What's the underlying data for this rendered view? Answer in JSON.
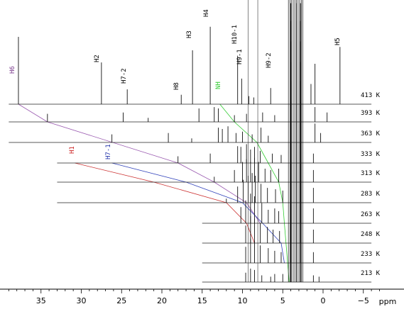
{
  "chart_data": {
    "type": "line",
    "xlabel": "ppm",
    "xlim": [
      39,
      -7
    ],
    "x_ticks": [
      35,
      30,
      25,
      20,
      15,
      10,
      5,
      0,
      -5
    ],
    "temperatures": [
      {
        "label": "413 K",
        "range": [
          39,
          -6
        ]
      },
      {
        "label": "393 K",
        "range": [
          39,
          -6
        ]
      },
      {
        "label": "363 K",
        "range": [
          39,
          -6
        ]
      },
      {
        "label": "333 K",
        "range": [
          33,
          -6
        ]
      },
      {
        "label": "313 K",
        "range": [
          33,
          -6
        ]
      },
      {
        "label": "283 K",
        "range": [
          33,
          -6
        ]
      },
      {
        "label": "263 K",
        "range": [
          15,
          -6
        ]
      },
      {
        "label": "248 K",
        "range": [
          15,
          -6
        ]
      },
      {
        "label": "233 K",
        "range": [
          15,
          -6
        ]
      },
      {
        "label": "213 K",
        "range": [
          15,
          -6
        ]
      }
    ],
    "peak_labels": [
      {
        "text": "H6",
        "ppm": 37.8,
        "color": "#7a3a8c"
      },
      {
        "text": "H2",
        "ppm": 27.5,
        "color": "#000000"
      },
      {
        "text": "H7-2",
        "ppm": 24.3,
        "color": "#000000"
      },
      {
        "text": "H8",
        "ppm": 17.6,
        "color": "#000000"
      },
      {
        "text": "H3",
        "ppm": 16.2,
        "color": "#000000"
      },
      {
        "text": "H4",
        "ppm": 14.0,
        "color": "#000000"
      },
      {
        "text": "NH",
        "ppm": 12.8,
        "color": "#33cc33"
      },
      {
        "text": "H10-1",
        "ppm": 10.6,
        "color": "#000000"
      },
      {
        "text": "H9-1",
        "ppm": 10.1,
        "color": "#000000"
      },
      {
        "text": "H9-2",
        "ppm": 6.5,
        "color": "#000000"
      },
      {
        "text": "H5",
        "ppm": -2.1,
        "color": "#000000"
      },
      {
        "text": "H1",
        "ppm": 30.8,
        "color": "#cc2222"
      },
      {
        "text": "H7-1",
        "ppm": 26.2,
        "color": "#2233aa"
      }
    ],
    "traces": [
      {
        "color": "#9a5ab0",
        "points": [
          [
            37.8,
            "413 K"
          ],
          [
            34.2,
            "393 K"
          ],
          [
            18.0,
            "333 K"
          ],
          [
            13.5,
            "313 K"
          ],
          [
            9.5,
            "283 K"
          ],
          [
            7.8,
            "263 K"
          ]
        ]
      },
      {
        "color": "#cc3333",
        "points": [
          [
            30.8,
            "333 K"
          ],
          [
            21.0,
            "313 K"
          ],
          [
            12.0,
            "283 K"
          ],
          [
            9.5,
            "263 K"
          ],
          [
            8.5,
            "248 K"
          ]
        ]
      },
      {
        "color": "#3344bb",
        "points": [
          [
            26.2,
            "333 K"
          ],
          [
            17.0,
            "313 K"
          ],
          [
            10.0,
            "283 K"
          ],
          [
            7.5,
            "263 K"
          ],
          [
            5.2,
            "248 K"
          ],
          [
            4.8,
            "233 K"
          ]
        ]
      },
      {
        "color": "#33cc33",
        "points": [
          [
            12.8,
            "413 K"
          ],
          [
            11.0,
            "393 K"
          ],
          [
            8.2,
            "363 K"
          ],
          [
            6.8,
            "333 K"
          ],
          [
            5.5,
            "313 K"
          ],
          [
            5.0,
            "283 K"
          ],
          [
            4.8,
            "263 K"
          ],
          [
            4.6,
            "248 K"
          ],
          [
            4.4,
            "233 K"
          ],
          [
            4.2,
            "213 K"
          ]
        ]
      }
    ],
    "spectra": [
      {
        "label": "413 K",
        "peaks": [
          [
            37.8,
            100
          ],
          [
            27.5,
            62
          ],
          [
            24.3,
            22
          ],
          [
            17.6,
            14
          ],
          [
            16.2,
            80
          ],
          [
            14.0,
            115
          ],
          [
            10.6,
            72
          ],
          [
            10.1,
            38
          ],
          [
            9.2,
            12
          ],
          [
            8.6,
            10
          ],
          [
            6.5,
            24
          ],
          [
            4.0,
            150
          ],
          [
            3.3,
            150
          ],
          [
            2.8,
            150
          ],
          [
            1.5,
            30
          ],
          [
            1.0,
            60
          ],
          [
            -2.1,
            85
          ]
        ]
      },
      {
        "label": "393 K",
        "peaks": [
          [
            34.2,
            12
          ],
          [
            24.8,
            14
          ],
          [
            21.7,
            6
          ],
          [
            15.4,
            20
          ],
          [
            13.5,
            22
          ],
          [
            13.0,
            20
          ],
          [
            11.0,
            10
          ],
          [
            9.5,
            12
          ],
          [
            7.5,
            14
          ],
          [
            6.0,
            10
          ],
          [
            4.0,
            150
          ],
          [
            3.3,
            150
          ],
          [
            2.8,
            150
          ],
          [
            1.0,
            22
          ],
          [
            -0.5,
            14
          ]
        ]
      },
      {
        "label": "363 K",
        "peaks": [
          [
            26.2,
            12
          ],
          [
            19.2,
            14
          ],
          [
            16.3,
            6
          ],
          [
            13.0,
            22
          ],
          [
            12.5,
            20
          ],
          [
            11.8,
            24
          ],
          [
            10.8,
            14
          ],
          [
            10.0,
            16
          ],
          [
            8.8,
            12
          ],
          [
            7.7,
            22
          ],
          [
            6.8,
            10
          ],
          [
            4.0,
            150
          ],
          [
            3.3,
            150
          ],
          [
            2.8,
            150
          ],
          [
            1.0,
            28
          ],
          [
            0.3,
            14
          ]
        ]
      },
      {
        "label": "333 K",
        "peaks": [
          [
            18.0,
            10
          ],
          [
            14.0,
            14
          ],
          [
            10.6,
            25
          ],
          [
            10.2,
            24
          ],
          [
            9.5,
            28
          ],
          [
            9.0,
            20
          ],
          [
            8.5,
            24
          ],
          [
            7.8,
            18
          ],
          [
            6.3,
            14
          ],
          [
            5.2,
            12
          ],
          [
            4.0,
            150
          ],
          [
            3.3,
            150
          ],
          [
            2.8,
            150
          ],
          [
            1.2,
            14
          ]
        ]
      },
      {
        "label": "313 K",
        "peaks": [
          [
            13.5,
            8
          ],
          [
            11.0,
            18
          ],
          [
            10.0,
            30
          ],
          [
            9.5,
            34
          ],
          [
            9.0,
            30
          ],
          [
            8.5,
            36
          ],
          [
            8.0,
            30
          ],
          [
            7.2,
            20
          ],
          [
            6.5,
            18
          ],
          [
            5.5,
            20
          ],
          [
            4.0,
            150
          ],
          [
            3.3,
            150
          ],
          [
            2.8,
            150
          ],
          [
            1.2,
            18
          ]
        ]
      },
      {
        "label": "283 K",
        "peaks": [
          [
            12.0,
            6
          ],
          [
            10.6,
            24
          ],
          [
            9.9,
            34
          ],
          [
            9.3,
            40
          ],
          [
            8.8,
            44
          ],
          [
            8.4,
            40
          ],
          [
            7.7,
            28
          ],
          [
            6.9,
            22
          ],
          [
            5.9,
            20
          ],
          [
            5.0,
            18
          ],
          [
            4.0,
            150
          ],
          [
            3.3,
            150
          ],
          [
            2.8,
            150
          ],
          [
            1.2,
            22
          ]
        ]
      },
      {
        "label": "263 K",
        "peaks": [
          [
            10.2,
            24
          ],
          [
            9.6,
            34
          ],
          [
            9.0,
            44
          ],
          [
            8.5,
            40
          ],
          [
            7.6,
            30
          ],
          [
            6.8,
            20
          ],
          [
            6.0,
            22
          ],
          [
            5.5,
            18
          ],
          [
            4.0,
            150
          ],
          [
            3.3,
            150
          ],
          [
            2.8,
            150
          ],
          [
            1.2,
            22
          ]
        ]
      },
      {
        "label": "248 K",
        "peaks": [
          [
            9.6,
            26
          ],
          [
            9.0,
            40
          ],
          [
            8.5,
            36
          ],
          [
            7.8,
            30
          ],
          [
            6.9,
            24
          ],
          [
            6.2,
            20
          ],
          [
            5.4,
            18
          ],
          [
            4.0,
            150
          ],
          [
            3.3,
            150
          ],
          [
            2.8,
            150
          ],
          [
            1.2,
            20
          ]
        ]
      },
      {
        "label": "233 K",
        "peaks": [
          [
            9.6,
            24
          ],
          [
            9.0,
            36
          ],
          [
            8.5,
            32
          ],
          [
            7.8,
            26
          ],
          [
            6.8,
            22
          ],
          [
            6.0,
            18
          ],
          [
            5.2,
            16
          ],
          [
            4.0,
            150
          ],
          [
            3.3,
            150
          ],
          [
            2.8,
            150
          ],
          [
            1.2,
            16
          ]
        ]
      },
      {
        "label": "213 K",
        "peaks": [
          [
            9.6,
            14
          ],
          [
            9.0,
            20
          ],
          [
            8.5,
            18
          ],
          [
            7.6,
            10
          ],
          [
            6.5,
            8
          ],
          [
            6.0,
            12
          ],
          [
            5.0,
            12
          ],
          [
            4.0,
            150
          ],
          [
            3.3,
            150
          ],
          [
            2.8,
            150
          ],
          [
            1.2,
            10
          ],
          [
            0.5,
            8
          ]
        ]
      }
    ]
  }
}
